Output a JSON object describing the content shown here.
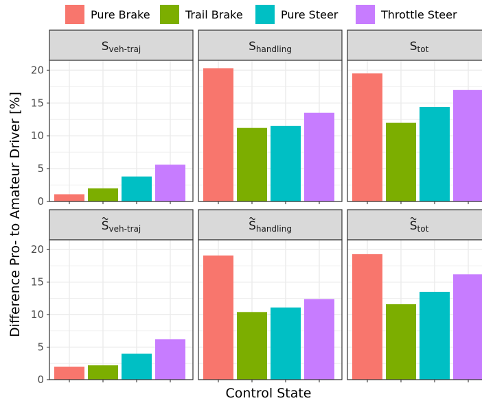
{
  "chart_data": {
    "type": "bar",
    "xlabel": "Control State",
    "ylabel": "Difference  Pro- to Amateur Driver [%]",
    "ylim": [
      0,
      21.5
    ],
    "yticks": [
      0,
      5,
      10,
      15,
      20
    ],
    "grid": true,
    "legend_position": "top",
    "legend": {
      "entries": [
        "Pure Brake",
        "Trail Brake",
        "Pure Steer",
        "Throttle Steer"
      ],
      "colors": [
        "#F8766D",
        "#7CAE00",
        "#00BFC4",
        "#C77CFF"
      ]
    },
    "panels": [
      {
        "tilde": false,
        "base": "S",
        "sub": "veh-traj",
        "values": [
          1.1,
          2.0,
          3.8,
          5.6
        ]
      },
      {
        "tilde": false,
        "base": "S",
        "sub": "handling",
        "values": [
          20.3,
          11.2,
          11.5,
          13.5
        ]
      },
      {
        "tilde": false,
        "base": "S",
        "sub": "tot",
        "values": [
          19.5,
          12.0,
          14.4,
          17.0
        ]
      },
      {
        "tilde": true,
        "base": "S",
        "sub": "veh-traj",
        "values": [
          2.0,
          2.2,
          4.0,
          6.2
        ]
      },
      {
        "tilde": true,
        "base": "S",
        "sub": "handling",
        "values": [
          19.1,
          10.4,
          11.1,
          12.4
        ]
      },
      {
        "tilde": true,
        "base": "S",
        "sub": "tot",
        "values": [
          19.3,
          11.6,
          13.5,
          16.2
        ]
      }
    ]
  }
}
